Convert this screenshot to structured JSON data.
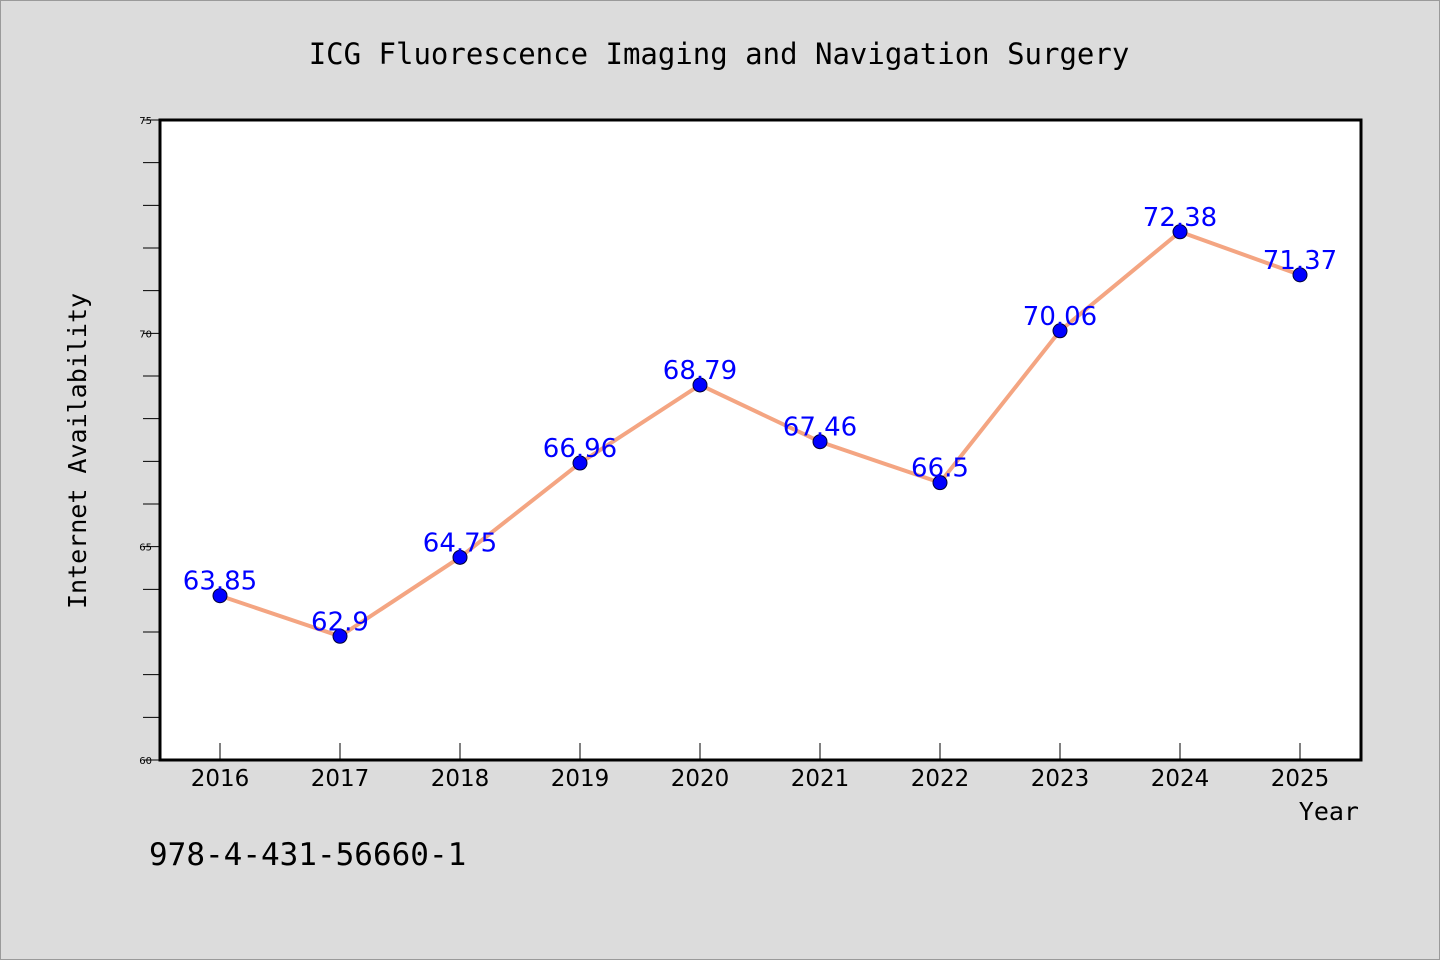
{
  "footer_id": "978-4-431-56660-1",
  "colors": {
    "background": "#dcdcdc",
    "plot_background": "#ffffff",
    "line": "#f4a582",
    "marker": "#0000ff",
    "data_label": "#0000ff"
  },
  "chart_data": {
    "type": "line",
    "title": "ICG Fluorescence Imaging and Navigation Surgery",
    "xlabel": "Year",
    "ylabel": "Internet Availability",
    "categories": [
      "2016",
      "2017",
      "2018",
      "2019",
      "2020",
      "2021",
      "2022",
      "2023",
      "2024",
      "2025"
    ],
    "series": [
      {
        "values": [
          63.85,
          62.9,
          64.75,
          66.96,
          68.79,
          67.46,
          66.5,
          70.06,
          72.38,
          71.37
        ],
        "labels": [
          "63.85",
          "62.9",
          "64.75",
          "66.96",
          "68.79",
          "67.46",
          "66.5",
          "70.06",
          "72.38",
          "71.37"
        ]
      }
    ],
    "ylim": [
      60,
      75
    ],
    "yticks": [
      60,
      65,
      70,
      75
    ],
    "yticks_minor_step": 1,
    "grid": false,
    "legend": "none"
  }
}
